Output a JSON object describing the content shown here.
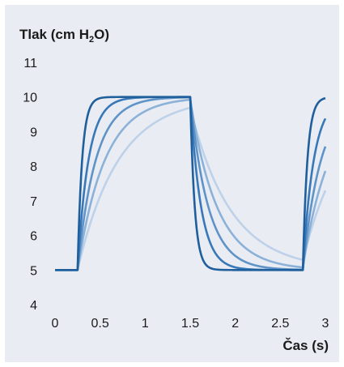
{
  "chart_data": {
    "type": "line",
    "ylabel": {
      "main": "Tlak (cm H",
      "sub": "2",
      "end": "O)"
    },
    "xlabel": "Čas (s)",
    "xlim": [
      0,
      3
    ],
    "ylim": [
      4,
      11
    ],
    "x_ticks": [
      "0",
      "0.5",
      "1",
      "1.5",
      "2",
      "2.5",
      "3"
    ],
    "y_ticks": [
      "4",
      "5",
      "6",
      "7",
      "8",
      "9",
      "10",
      "11"
    ],
    "grid": false,
    "baseline": 5,
    "peak": 10,
    "rise_times": [
      0.25,
      2.75
    ],
    "fall_time": 1.5,
    "series": [
      {
        "color": "#1f5f9c",
        "tau": 0.05
      },
      {
        "color": "#3877b8",
        "tau": 0.12
      },
      {
        "color": "#5f93c8",
        "tau": 0.2
      },
      {
        "color": "#8cb1d8",
        "tau": 0.3
      },
      {
        "color": "#bdd1e9",
        "tau": 0.45
      }
    ]
  }
}
